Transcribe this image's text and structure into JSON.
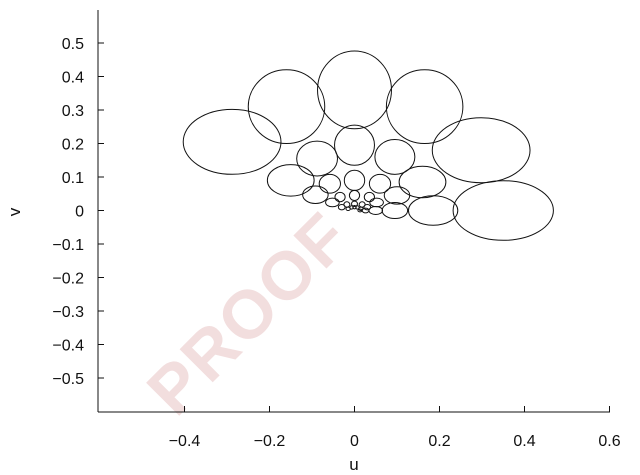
{
  "watermark": "PROOF",
  "chart_data": {
    "type": "scatter",
    "title": "",
    "xlabel": "u",
    "ylabel": "v",
    "xlim": [
      -0.52,
      0.61
    ],
    "ylim": [
      -0.61,
      0.6
    ],
    "xticks": [
      -0.4,
      -0.2,
      0,
      0.2,
      0.4,
      0.6
    ],
    "xtick_labels": [
      "−0.4",
      "−0.2",
      "0",
      "0.2",
      "0.4",
      "0.6"
    ],
    "yticks": [
      0.5,
      0.4,
      0.3,
      0.2,
      0.1,
      0,
      -0.1,
      -0.2,
      -0.3,
      -0.4,
      -0.5
    ],
    "ytick_labels": [
      "0.5",
      "0.4",
      "0.3",
      "0.2",
      "0.1",
      "0",
      "−0.1",
      "−0.2",
      "−0.3",
      "−0.4",
      "−0.5"
    ],
    "grid": false,
    "legend": "none",
    "ellipses": [
      {
        "cx": -0.288,
        "cy": 0.205,
        "rx": 0.115,
        "ry": 0.097
      },
      {
        "cx": -0.16,
        "cy": 0.31,
        "rx": 0.09,
        "ry": 0.11
      },
      {
        "cx": 0.0,
        "cy": 0.36,
        "rx": 0.087,
        "ry": 0.116
      },
      {
        "cx": 0.165,
        "cy": 0.31,
        "rx": 0.09,
        "ry": 0.11
      },
      {
        "cx": 0.298,
        "cy": 0.18,
        "rx": 0.115,
        "ry": 0.097
      },
      {
        "cx": 0.35,
        "cy": 0.0,
        "rx": 0.118,
        "ry": 0.089
      },
      {
        "cx": -0.088,
        "cy": 0.155,
        "rx": 0.048,
        "ry": 0.052
      },
      {
        "cx": 0.0,
        "cy": 0.195,
        "rx": 0.047,
        "ry": 0.06
      },
      {
        "cx": 0.095,
        "cy": 0.16,
        "rx": 0.047,
        "ry": 0.052
      },
      {
        "cx": -0.15,
        "cy": 0.09,
        "rx": 0.055,
        "ry": 0.047
      },
      {
        "cx": 0.16,
        "cy": 0.085,
        "rx": 0.055,
        "ry": 0.047
      },
      {
        "cx": 0.185,
        "cy": 0.0,
        "rx": 0.058,
        "ry": 0.044
      },
      {
        "cx": -0.058,
        "cy": 0.08,
        "rx": 0.025,
        "ry": 0.028
      },
      {
        "cx": 0.0,
        "cy": 0.09,
        "rx": 0.024,
        "ry": 0.03
      },
      {
        "cx": 0.06,
        "cy": 0.08,
        "rx": 0.025,
        "ry": 0.028
      },
      {
        "cx": -0.092,
        "cy": 0.047,
        "rx": 0.03,
        "ry": 0.026
      },
      {
        "cx": 0.1,
        "cy": 0.045,
        "rx": 0.03,
        "ry": 0.026
      },
      {
        "cx": 0.095,
        "cy": 0.0,
        "rx": 0.03,
        "ry": 0.024
      },
      {
        "cx": -0.034,
        "cy": 0.04,
        "rx": 0.012,
        "ry": 0.014
      },
      {
        "cx": 0.0,
        "cy": 0.045,
        "rx": 0.012,
        "ry": 0.015
      },
      {
        "cx": 0.035,
        "cy": 0.04,
        "rx": 0.012,
        "ry": 0.014
      },
      {
        "cx": -0.052,
        "cy": 0.024,
        "rx": 0.016,
        "ry": 0.013
      },
      {
        "cx": 0.052,
        "cy": 0.024,
        "rx": 0.016,
        "ry": 0.013
      },
      {
        "cx": 0.05,
        "cy": 0.0,
        "rx": 0.016,
        "ry": 0.012
      },
      {
        "cx": -0.03,
        "cy": 0.01,
        "rx": 0.008,
        "ry": 0.008
      },
      {
        "cx": -0.018,
        "cy": 0.018,
        "rx": 0.007,
        "ry": 0.008
      },
      {
        "cx": 0.0,
        "cy": 0.02,
        "rx": 0.007,
        "ry": 0.008
      },
      {
        "cx": 0.018,
        "cy": 0.018,
        "rx": 0.007,
        "ry": 0.008
      },
      {
        "cx": 0.03,
        "cy": 0.01,
        "rx": 0.008,
        "ry": 0.008
      },
      {
        "cx": 0.026,
        "cy": 0.0,
        "rx": 0.008,
        "ry": 0.007
      },
      {
        "cx": -0.015,
        "cy": 0.005,
        "rx": 0.005,
        "ry": 0.005
      },
      {
        "cx": -0.007,
        "cy": 0.009,
        "rx": 0.004,
        "ry": 0.005
      },
      {
        "cx": 0.0,
        "cy": 0.01,
        "rx": 0.004,
        "ry": 0.005
      },
      {
        "cx": 0.007,
        "cy": 0.009,
        "rx": 0.004,
        "ry": 0.005
      },
      {
        "cx": 0.015,
        "cy": 0.005,
        "rx": 0.005,
        "ry": 0.005
      },
      {
        "cx": 0.013,
        "cy": 0.0,
        "rx": 0.005,
        "ry": 0.004
      }
    ]
  }
}
